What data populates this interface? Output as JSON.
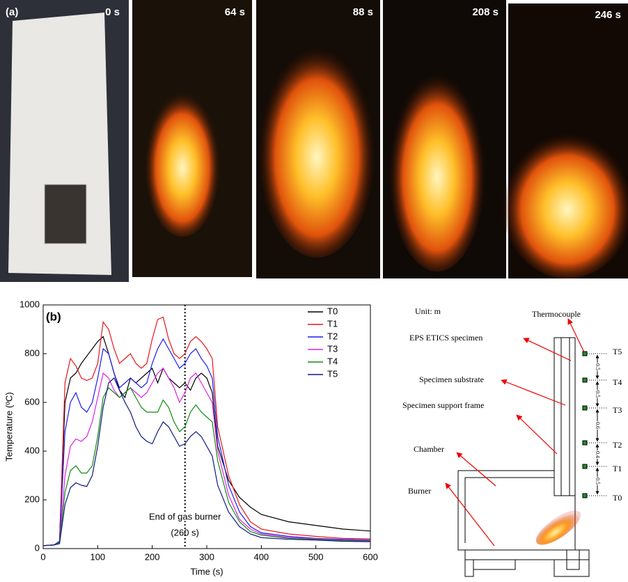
{
  "photos": {
    "label": "(a)",
    "frames": [
      "0 s",
      "64 s",
      "88 s",
      "208 s",
      "246 s"
    ]
  },
  "chart_data": {
    "type": "line",
    "label": "(b)",
    "x_label": "Time (s)",
    "y_label": "Temperature (ºC)",
    "xlim": [
      0,
      600
    ],
    "ylim": [
      0,
      1000
    ],
    "xticks": [
      0,
      100,
      200,
      300,
      400,
      500,
      600
    ],
    "yticks": [
      0,
      200,
      400,
      600,
      800,
      1000
    ],
    "legend": "upper right",
    "vline": {
      "x": 260,
      "text": "End of gas burner",
      "subtext": "(260 s)"
    },
    "x": [
      0,
      20,
      30,
      40,
      50,
      60,
      70,
      80,
      90,
      100,
      110,
      120,
      130,
      140,
      150,
      160,
      170,
      180,
      190,
      200,
      210,
      220,
      230,
      240,
      250,
      260,
      270,
      280,
      290,
      300,
      310,
      320,
      340,
      360,
      380,
      400,
      450,
      500,
      550,
      600
    ],
    "series": [
      {
        "name": "T0",
        "color": "#000000",
        "values": [
          12,
          15,
          30,
          600,
          700,
          720,
          760,
          790,
          820,
          850,
          870,
          800,
          720,
          650,
          620,
          700,
          680,
          700,
          720,
          740,
          680,
          740,
          700,
          680,
          660,
          680,
          650,
          700,
          720,
          700,
          640,
          420,
          280,
          210,
          170,
          140,
          110,
          95,
          80,
          72
        ]
      },
      {
        "name": "T1",
        "color": "#e8141b",
        "values": [
          12,
          15,
          30,
          680,
          780,
          750,
          700,
          690,
          700,
          760,
          930,
          900,
          820,
          760,
          780,
          800,
          760,
          740,
          760,
          860,
          940,
          950,
          860,
          800,
          780,
          800,
          850,
          870,
          850,
          820,
          780,
          500,
          300,
          180,
          110,
          80,
          60,
          50,
          42,
          40
        ]
      },
      {
        "name": "T2",
        "color": "#1c1cf0",
        "values": [
          12,
          15,
          30,
          480,
          600,
          640,
          580,
          560,
          600,
          700,
          820,
          800,
          720,
          660,
          680,
          700,
          680,
          660,
          680,
          760,
          820,
          860,
          820,
          780,
          740,
          760,
          800,
          820,
          780,
          750,
          700,
          460,
          260,
          150,
          90,
          65,
          50,
          42,
          38,
          35
        ]
      },
      {
        "name": "T3",
        "color": "#e020e0",
        "values": [
          12,
          15,
          25,
          300,
          420,
          450,
          440,
          460,
          520,
          620,
          720,
          700,
          650,
          620,
          640,
          660,
          640,
          620,
          640,
          680,
          720,
          740,
          700,
          660,
          600,
          640,
          700,
          720,
          680,
          640,
          600,
          400,
          220,
          120,
          80,
          60,
          45,
          40,
          35,
          32
        ]
      },
      {
        "name": "T4",
        "color": "#138a13",
        "values": [
          12,
          15,
          25,
          230,
          320,
          340,
          310,
          310,
          340,
          460,
          620,
          660,
          640,
          620,
          640,
          660,
          620,
          580,
          560,
          560,
          560,
          610,
          580,
          520,
          480,
          500,
          560,
          590,
          560,
          540,
          520,
          360,
          190,
          110,
          70,
          55,
          42,
          38,
          33,
          30
        ]
      },
      {
        "name": "T5",
        "color": "#0c1a80",
        "values": [
          12,
          15,
          20,
          180,
          250,
          270,
          260,
          255,
          300,
          420,
          580,
          680,
          700,
          650,
          600,
          560,
          500,
          460,
          440,
          430,
          480,
          520,
          500,
          460,
          420,
          430,
          460,
          480,
          460,
          420,
          380,
          260,
          150,
          90,
          60,
          45,
          38,
          35,
          30,
          28
        ]
      }
    ]
  },
  "diagram": {
    "unit": "Unit: m",
    "thermocouple": "Thermocouple",
    "specimen": "EPS ETICS specimen",
    "substrate": "Specimen substrate",
    "frame": "Specimen support frame",
    "chamber": "Chamber",
    "burner": "Burner",
    "sensors": [
      "T5",
      "T4",
      "T3",
      "T2",
      "T1",
      "T0"
    ],
    "spacings": [
      "0.5",
      "0.5",
      "0.6",
      "0.4",
      "0.5"
    ]
  }
}
